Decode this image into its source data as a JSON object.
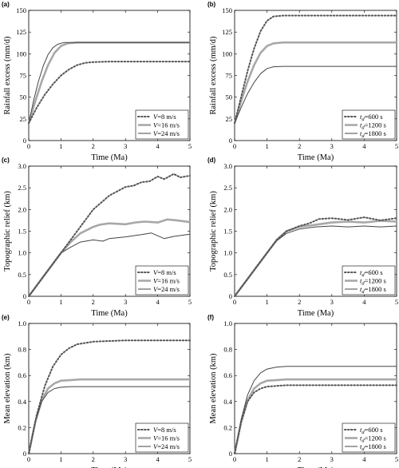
{
  "chart_data": [
    {
      "panel": "(a)",
      "type": "line",
      "xlabel": "Time (Ma)",
      "ylabel": "Rainfall excess (mm/d)",
      "xlim": [
        0,
        5
      ],
      "ylim": [
        0,
        150
      ],
      "xticks": [
        "0",
        "1",
        "2",
        "3",
        "4",
        "5"
      ],
      "yticks": [
        "0",
        "25",
        "50",
        "75",
        "100",
        "125",
        "150"
      ],
      "legend_position": "bottom-right",
      "series": [
        {
          "name": "V=8 m/s",
          "legend_var": "V",
          "legend_sub": "",
          "legend_value": "=8 m/s",
          "style": "dotted",
          "x": [
            0,
            0.25,
            0.5,
            0.75,
            1.0,
            1.25,
            1.5,
            1.75,
            2.0,
            2.5,
            3,
            4,
            5
          ],
          "y": [
            20,
            38,
            53,
            65,
            75,
            82,
            87,
            89.5,
            90.5,
            91,
            91,
            91,
            91
          ]
        },
        {
          "name": "V=16 m/s",
          "legend_var": "V",
          "legend_sub": "",
          "legend_value": "=16 m/s",
          "style": "thick",
          "x": [
            0,
            0.2,
            0.4,
            0.6,
            0.8,
            1.0,
            1.2,
            1.5,
            2,
            3,
            4,
            5
          ],
          "y": [
            20,
            45,
            68,
            87,
            101,
            109,
            112,
            113,
            113,
            113,
            113,
            113
          ]
        },
        {
          "name": "V=24 m/s",
          "legend_var": "V",
          "legend_sub": "",
          "legend_value": "=24 m/s",
          "style": "thin",
          "x": [
            0,
            0.15,
            0.3,
            0.45,
            0.6,
            0.75,
            0.9,
            1.1,
            1.4,
            2,
            3,
            4,
            5
          ],
          "y": [
            20,
            46,
            68,
            86,
            99,
            107,
            111,
            113,
            113,
            113,
            113,
            113,
            113
          ]
        }
      ]
    },
    {
      "panel": "(b)",
      "type": "line",
      "xlabel": "Time (Ma)",
      "ylabel": "Rainfall excess (mm/d)",
      "xlim": [
        0,
        5
      ],
      "ylim": [
        0,
        150
      ],
      "xticks": [
        "0",
        "1",
        "2",
        "3",
        "4",
        "5"
      ],
      "yticks": [
        "0",
        "25",
        "50",
        "75",
        "100",
        "125",
        "150"
      ],
      "legend_position": "bottom-right",
      "series": [
        {
          "name": "td=600 s",
          "legend_var": "t",
          "legend_sub": "d",
          "legend_value": "=600 s",
          "style": "dotted",
          "x": [
            0,
            0.2,
            0.4,
            0.6,
            0.8,
            1.0,
            1.2,
            1.5,
            2,
            3,
            4,
            5
          ],
          "y": [
            20,
            50,
            80,
            106,
            126,
            138,
            143,
            144,
            144,
            144,
            144,
            144
          ]
        },
        {
          "name": "td=1200 s",
          "legend_var": "t",
          "legend_sub": "d",
          "legend_value": "=1200 s",
          "style": "thick",
          "x": [
            0,
            0.2,
            0.4,
            0.6,
            0.8,
            1.0,
            1.2,
            1.5,
            2,
            3,
            4,
            5
          ],
          "y": [
            20,
            45,
            68,
            87,
            101,
            109,
            112,
            113,
            113,
            113,
            113,
            113
          ]
        },
        {
          "name": "td=1800 s",
          "legend_var": "t",
          "legend_sub": "d",
          "legend_value": "=1800 s",
          "style": "thin",
          "x": [
            0,
            0.2,
            0.4,
            0.6,
            0.8,
            1.0,
            1.2,
            1.5,
            2,
            3,
            4,
            5
          ],
          "y": [
            20,
            38,
            54,
            67,
            77,
            83,
            85,
            85.5,
            85.5,
            85.5,
            85.5,
            85.5
          ]
        }
      ]
    },
    {
      "panel": "(c)",
      "type": "line",
      "xlabel": "Time (Ma)",
      "ylabel": "Topographic relief (km)",
      "xlim": [
        0,
        5
      ],
      "ylim": [
        0,
        3.0
      ],
      "xticks": [
        "0",
        "1",
        "2",
        "3",
        "4",
        "5"
      ],
      "yticks": [
        "0",
        "0.5",
        "1.0",
        "1.5",
        "2.0",
        "2.5",
        "3.0"
      ],
      "legend_position": "bottom-right",
      "series": [
        {
          "name": "V=8 m/s",
          "legend_var": "V",
          "legend_sub": "",
          "legend_value": "=8 m/s",
          "style": "dotted",
          "x": [
            0,
            0.5,
            1.0,
            1.5,
            2.0,
            2.5,
            3.0,
            3.25,
            3.5,
            3.75,
            4.0,
            4.2,
            4.5,
            4.7,
            5.0
          ],
          "y": [
            0,
            0.5,
            1.0,
            1.5,
            2.0,
            2.32,
            2.52,
            2.55,
            2.63,
            2.65,
            2.76,
            2.7,
            2.82,
            2.74,
            2.78
          ]
        },
        {
          "name": "V=16 m/s",
          "legend_var": "V",
          "legend_sub": "",
          "legend_value": "=16 m/s",
          "style": "thick",
          "x": [
            0,
            0.5,
            1.0,
            1.3,
            1.6,
            2.0,
            2.2,
            2.5,
            3.0,
            3.3,
            3.6,
            4.0,
            4.3,
            4.6,
            5.0
          ],
          "y": [
            0,
            0.5,
            1.0,
            1.25,
            1.45,
            1.6,
            1.65,
            1.68,
            1.66,
            1.7,
            1.72,
            1.7,
            1.77,
            1.75,
            1.71
          ]
        },
        {
          "name": "V=24 m/s",
          "legend_var": "V",
          "legend_sub": "",
          "legend_value": "=24 m/s",
          "style": "thin",
          "x": [
            0,
            0.5,
            1.0,
            1.3,
            1.6,
            2.0,
            2.3,
            2.5,
            3.0,
            3.5,
            3.8,
            4.2,
            4.5,
            5.0
          ],
          "y": [
            0,
            0.5,
            1.0,
            1.13,
            1.25,
            1.3,
            1.27,
            1.33,
            1.37,
            1.42,
            1.46,
            1.33,
            1.38,
            1.43
          ]
        }
      ]
    },
    {
      "panel": "(d)",
      "type": "line",
      "xlabel": "Time (Ma)",
      "ylabel": "Topographic relief (km)",
      "xlim": [
        0,
        5
      ],
      "ylim": [
        0,
        3.0
      ],
      "xticks": [
        "0",
        "1",
        "2",
        "3",
        "4",
        "5"
      ],
      "yticks": [
        "0",
        "0.5",
        "1.0",
        "1.5",
        "2.0",
        "2.5",
        "3.0"
      ],
      "legend_position": "bottom-right",
      "series": [
        {
          "name": "td=600 s",
          "legend_var": "t",
          "legend_sub": "d",
          "legend_value": "=600 s",
          "style": "dotted",
          "x": [
            0,
            0.5,
            1.0,
            1.3,
            1.6,
            2.0,
            2.3,
            2.6,
            3.0,
            3.5,
            4.0,
            4.5,
            5.0
          ],
          "y": [
            0,
            0.5,
            1.0,
            1.3,
            1.5,
            1.62,
            1.68,
            1.78,
            1.8,
            1.76,
            1.82,
            1.75,
            1.8
          ]
        },
        {
          "name": "td=1200 s",
          "legend_var": "t",
          "legend_sub": "d",
          "legend_value": "=1200 s",
          "style": "thick",
          "x": [
            0,
            0.5,
            1.0,
            1.3,
            1.6,
            2.0,
            2.5,
            3.0,
            3.5,
            4.0,
            4.5,
            5.0
          ],
          "y": [
            0,
            0.5,
            1.0,
            1.3,
            1.5,
            1.6,
            1.65,
            1.7,
            1.72,
            1.7,
            1.74,
            1.72
          ]
        },
        {
          "name": "td=1800 s",
          "legend_var": "t",
          "legend_sub": "d",
          "legend_value": "=1800 s",
          "style": "thin",
          "x": [
            0,
            0.5,
            1.0,
            1.3,
            1.6,
            2.0,
            2.5,
            3.0,
            3.5,
            4.0,
            4.5,
            5.0
          ],
          "y": [
            0,
            0.5,
            1.0,
            1.28,
            1.45,
            1.55,
            1.6,
            1.62,
            1.6,
            1.62,
            1.6,
            1.62
          ]
        }
      ]
    },
    {
      "panel": "(e)",
      "type": "line",
      "xlabel": "Time (Ma)",
      "ylabel": "Mean elevation (km)",
      "xlim": [
        0,
        5
      ],
      "ylim": [
        0,
        1.0
      ],
      "xticks": [
        "0",
        "1",
        "2",
        "3",
        "4",
        "5"
      ],
      "yticks": [
        "0",
        "0.2",
        "0.4",
        "0.6",
        "0.8",
        "1.0"
      ],
      "legend_position": "bottom-right",
      "series": [
        {
          "name": "V=8 m/s",
          "legend_var": "V",
          "legend_sub": "",
          "legend_value": "=8 m/s",
          "style": "dotted",
          "x": [
            0,
            0.25,
            0.5,
            0.75,
            1.0,
            1.25,
            1.5,
            2.0,
            2.5,
            3,
            4,
            5
          ],
          "y": [
            0,
            0.3,
            0.52,
            0.67,
            0.76,
            0.81,
            0.84,
            0.86,
            0.865,
            0.87,
            0.87,
            0.87
          ]
        },
        {
          "name": "V=16 m/s",
          "legend_var": "V",
          "legend_sub": "",
          "legend_value": "=16 m/s",
          "style": "thick",
          "x": [
            0,
            0.2,
            0.4,
            0.6,
            0.8,
            1.0,
            1.3,
            1.6,
            2,
            3,
            4,
            5
          ],
          "y": [
            0,
            0.24,
            0.41,
            0.5,
            0.54,
            0.56,
            0.565,
            0.57,
            0.57,
            0.57,
            0.57,
            0.57
          ]
        },
        {
          "name": "V=24 m/s",
          "legend_var": "V",
          "legend_sub": "",
          "legend_value": "=24 m/s",
          "style": "thin",
          "x": [
            0,
            0.2,
            0.4,
            0.6,
            0.8,
            1.0,
            1.3,
            1.6,
            2,
            3,
            4,
            5
          ],
          "y": [
            0,
            0.24,
            0.4,
            0.47,
            0.5,
            0.51,
            0.515,
            0.515,
            0.515,
            0.515,
            0.515,
            0.515
          ]
        }
      ]
    },
    {
      "panel": "(f)",
      "type": "line",
      "xlabel": "Time (Ma)",
      "ylabel": "Mean elevation (km)",
      "xlim": [
        0,
        5
      ],
      "ylim": [
        0,
        1.0
      ],
      "xticks": [
        "0",
        "1",
        "2",
        "3",
        "4",
        "5"
      ],
      "yticks": [
        "0",
        "0.2",
        "0.4",
        "0.6",
        "0.8",
        "1.0"
      ],
      "legend_position": "bottom-right",
      "series": [
        {
          "name": "td=600 s",
          "legend_var": "t",
          "legend_sub": "d",
          "legend_value": "=600 s",
          "style": "dotted",
          "x": [
            0,
            0.2,
            0.4,
            0.6,
            0.8,
            1.0,
            1.3,
            1.6,
            2,
            3,
            4,
            5
          ],
          "y": [
            0,
            0.24,
            0.4,
            0.47,
            0.5,
            0.515,
            0.52,
            0.525,
            0.525,
            0.525,
            0.525,
            0.525
          ]
        },
        {
          "name": "td=1200 s",
          "legend_var": "t",
          "legend_sub": "d",
          "legend_value": "=1200 s",
          "style": "thick",
          "x": [
            0,
            0.2,
            0.4,
            0.6,
            0.8,
            1.0,
            1.3,
            1.6,
            2,
            3,
            4,
            5
          ],
          "y": [
            0,
            0.24,
            0.41,
            0.5,
            0.54,
            0.56,
            0.565,
            0.57,
            0.57,
            0.57,
            0.57,
            0.57
          ]
        },
        {
          "name": "td=1800 s",
          "legend_var": "t",
          "legend_sub": "d",
          "legend_value": "=1800 s",
          "style": "thin",
          "x": [
            0,
            0.2,
            0.4,
            0.6,
            0.8,
            1.0,
            1.3,
            1.6,
            2,
            3,
            4,
            5
          ],
          "y": [
            0,
            0.26,
            0.45,
            0.56,
            0.62,
            0.65,
            0.665,
            0.67,
            0.67,
            0.67,
            0.67,
            0.67
          ]
        }
      ]
    }
  ]
}
